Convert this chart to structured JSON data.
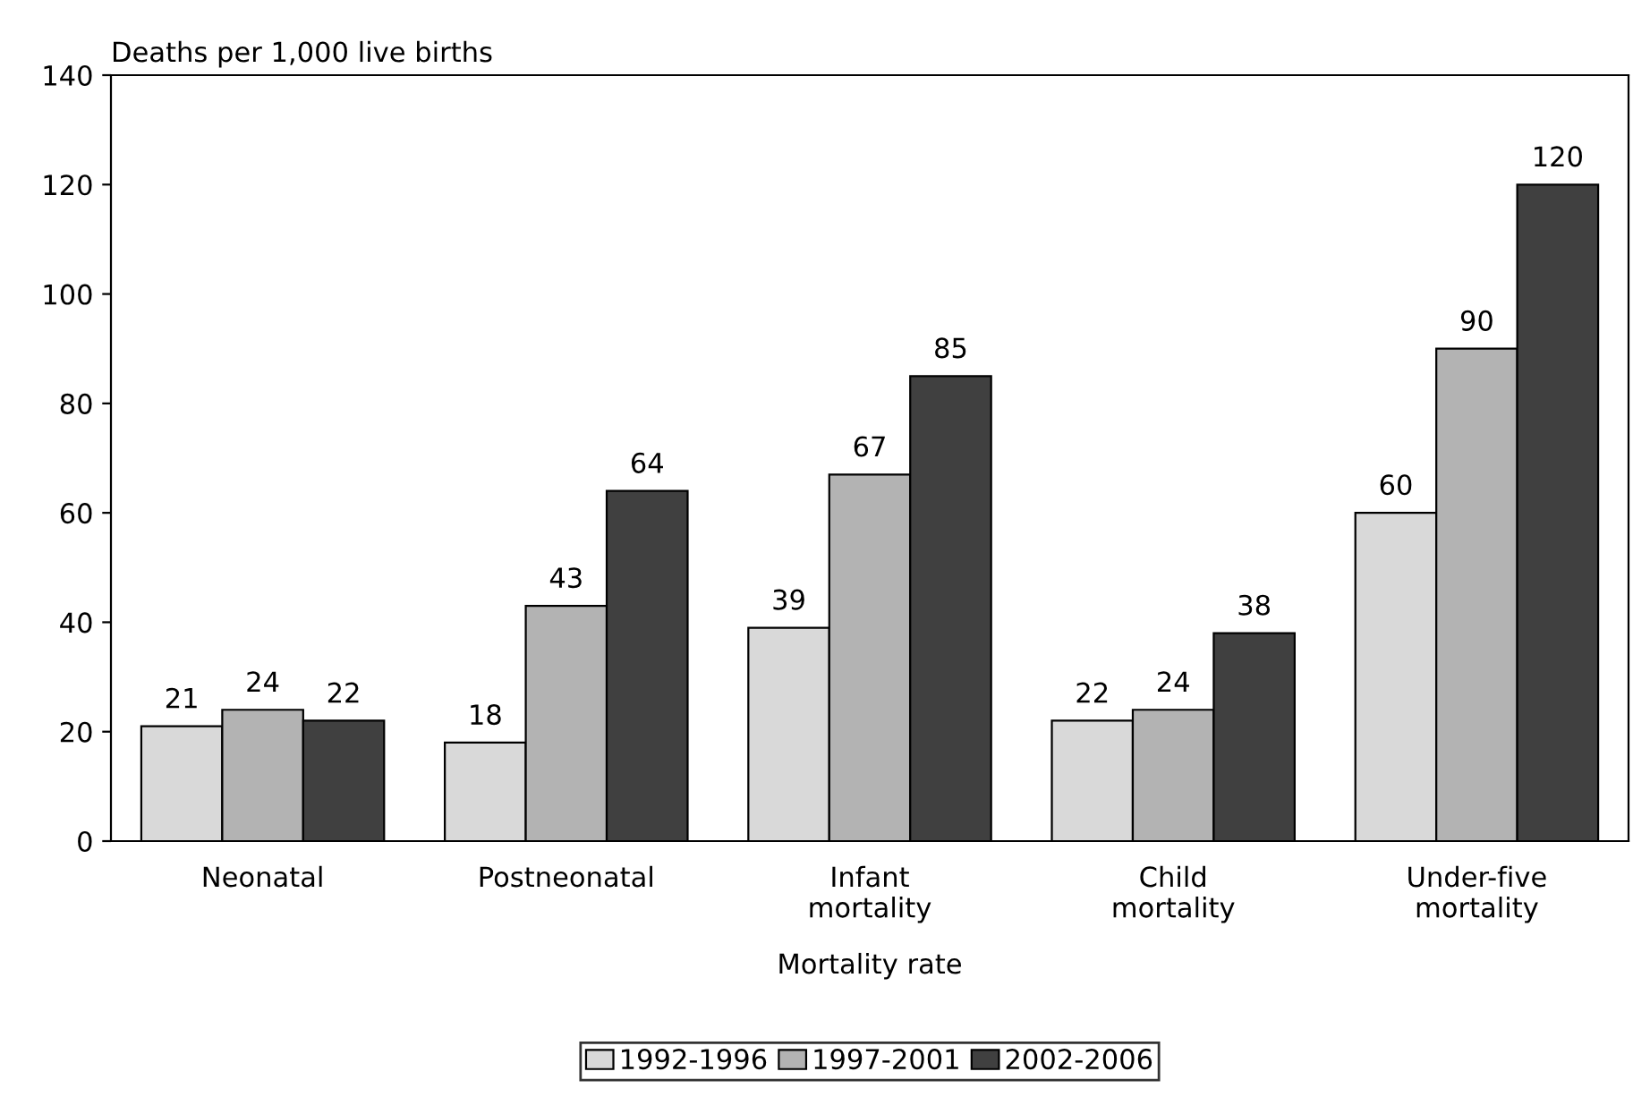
{
  "chart_data": {
    "type": "bar",
    "ylabel": "Deaths per 1,000 live births",
    "xlabel": "Mortality rate",
    "categories": [
      "Neonatal",
      "Postneonatal",
      "Infant\nmortality",
      "Child\nmortality",
      "Under-five\nmortality"
    ],
    "series": [
      {
        "name": "1992-1996",
        "color": "#d9d9d9",
        "values": [
          21,
          18,
          39,
          22,
          60
        ]
      },
      {
        "name": "1997-2001",
        "color": "#b3b3b3",
        "values": [
          24,
          43,
          67,
          24,
          90
        ]
      },
      {
        "name": "2002-2006",
        "color": "#404040",
        "values": [
          22,
          64,
          85,
          38,
          120
        ]
      }
    ],
    "ylim": [
      0,
      140
    ],
    "yticks": [
      0,
      20,
      40,
      60,
      80,
      100,
      120,
      140
    ],
    "data_labels": true,
    "grid": false,
    "legend": "bottom"
  }
}
